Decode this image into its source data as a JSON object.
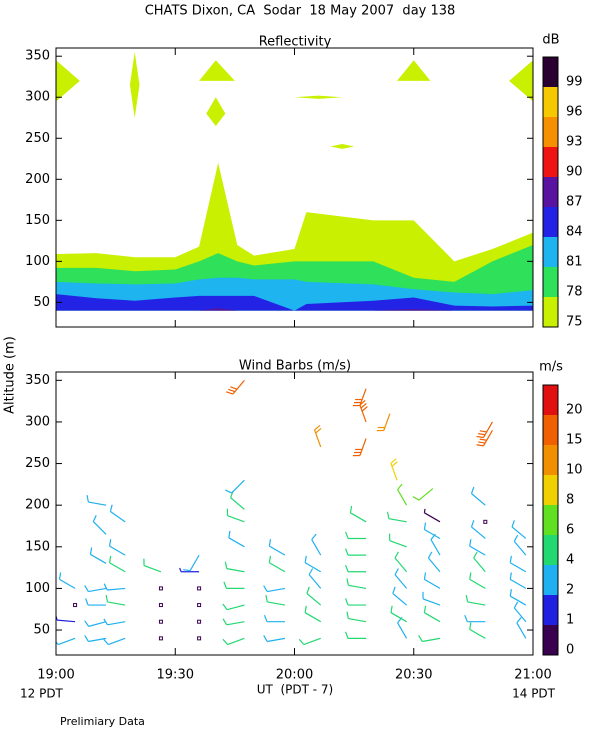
{
  "title": "CHATS Dixon, CA  Sodar  18 May 2007  day 138",
  "ylabel": "Altitude (m)",
  "footer": "Prelimiary Data",
  "chart_data": [
    {
      "type": "contour",
      "title": "Reflectivity",
      "colorbar_label": "dB",
      "levels": [
        75,
        78,
        81,
        84,
        87,
        90,
        93,
        96,
        99
      ],
      "colors": [
        "#c8f000",
        "#2ee05a",
        "#1eb4f0",
        "#2323e6",
        "#5a12a0",
        "#ee1414",
        "#f59000",
        "#f5c800",
        "#2a0030"
      ],
      "x": [
        19,
        19.17,
        19.33,
        19.5,
        19.6,
        19.68,
        19.76,
        19.83,
        20,
        20.05,
        20.33,
        20.5,
        20.67,
        20.83,
        21
      ],
      "tops": [
        [
          109,
          110,
          105,
          105,
          118,
          220,
          120,
          107,
          115,
          160,
          150,
          150,
          100,
          115,
          135
        ],
        [
          92,
          92,
          88,
          90,
          100,
          110,
          100,
          95,
          100,
          100,
          100,
          80,
          75,
          100,
          120
        ],
        [
          75,
          73,
          72,
          73,
          78,
          80,
          80,
          78,
          78,
          75,
          72,
          66,
          62,
          60,
          65
        ],
        [
          60,
          55,
          52,
          56,
          58,
          58,
          58,
          58,
          40,
          48,
          52,
          56,
          46,
          45,
          46
        ],
        [
          40,
          40,
          40,
          40,
          40,
          43,
          40,
          40,
          40,
          40,
          40,
          42,
          40,
          40,
          40
        ]
      ],
      "base": 40,
      "patches": [
        {
          "x": [
            19,
            19.1,
            19
          ],
          "y": [
            295,
            320,
            345
          ]
        },
        {
          "x": [
            21,
            20.9,
            21
          ],
          "y": [
            295,
            320,
            345
          ]
        },
        {
          "x": [
            19.31,
            19.33,
            19.35,
            19.33
          ],
          "y": [
            315,
            355,
            315,
            275
          ]
        },
        {
          "x": [
            19.6,
            19.67,
            19.75
          ],
          "y": [
            320,
            345,
            320
          ]
        },
        {
          "x": [
            19.63,
            19.67,
            19.71,
            19.67
          ],
          "y": [
            280,
            300,
            280,
            265
          ]
        },
        {
          "x": [
            20.43,
            20.5,
            20.57
          ],
          "y": [
            320,
            345,
            320
          ]
        },
        {
          "x": [
            20,
            20.1,
            20.2,
            20.1
          ],
          "y": [
            300,
            302,
            300,
            298
          ]
        },
        {
          "x": [
            20.15,
            20.2,
            20.25,
            20.2
          ],
          "y": [
            240,
            243,
            240,
            237
          ]
        }
      ],
      "xlim": [
        19,
        21
      ],
      "xticks": [
        19,
        19.5,
        20,
        20.5,
        21
      ],
      "ylim": [
        20,
        360
      ],
      "yticks": [
        50,
        100,
        150,
        200,
        250,
        300,
        350
      ]
    },
    {
      "type": "barbs",
      "title": "Wind Barbs (m/s)",
      "colorbar_label": "m/s",
      "levels": [
        0,
        1,
        2,
        4,
        6,
        8,
        10,
        15,
        20
      ],
      "colors": [
        "#3a0050",
        "#2020e0",
        "#1eb0f0",
        "#22d870",
        "#60e020",
        "#f0d000",
        "#f09000",
        "#f06000",
        "#e01010"
      ],
      "x": [
        19.08,
        19.08,
        19.08,
        19.08,
        19.21,
        19.21,
        19.21,
        19.21,
        19.21,
        19.21,
        19.21,
        19.29,
        19.29,
        19.29,
        19.29,
        19.29,
        19.29,
        19.29,
        19.44,
        19.44,
        19.44,
        19.44,
        19.44,
        19.6,
        19.6,
        19.6,
        19.6,
        19.6,
        19.6,
        19.79,
        19.79,
        19.79,
        19.79,
        19.79,
        19.79,
        19.79,
        19.79,
        19.79,
        19.79,
        19.96,
        19.96,
        19.96,
        19.96,
        19.96,
        19.96,
        20.11,
        20.11,
        20.11,
        20.11,
        20.11,
        20.11,
        20.11,
        20.3,
        20.3,
        20.3,
        20.3,
        20.3,
        20.3,
        20.3,
        20.3,
        20.3,
        20.3,
        20.3,
        20.47,
        20.47,
        20.47,
        20.47,
        20.47,
        20.47,
        20.47,
        20.47,
        20.43,
        20.4,
        20.61,
        20.61,
        20.61,
        20.61,
        20.61,
        20.61,
        20.61,
        20.61,
        20.58,
        20.8,
        20.8,
        20.8,
        20.8,
        20.8,
        20.8,
        20.8,
        20.8,
        20.8,
        20.83,
        20.83,
        20.97,
        20.97,
        20.97,
        20.97,
        20.97,
        20.97,
        20.97
      ],
      "y": [
        40,
        60,
        80,
        100,
        40,
        60,
        80,
        100,
        130,
        165,
        200,
        40,
        60,
        80,
        100,
        120,
        140,
        180,
        40,
        60,
        80,
        100,
        120,
        40,
        60,
        80,
        100,
        120,
        140,
        40,
        60,
        80,
        100,
        120,
        150,
        180,
        195,
        230,
        350,
        40,
        60,
        80,
        100,
        120,
        140,
        40,
        60,
        80,
        100,
        120,
        140,
        270,
        40,
        60,
        80,
        100,
        120,
        140,
        160,
        180,
        280,
        300,
        340,
        40,
        60,
        80,
        100,
        120,
        150,
        180,
        200,
        230,
        310,
        40,
        60,
        80,
        100,
        120,
        140,
        160,
        180,
        220,
        40,
        60,
        80,
        100,
        120,
        140,
        160,
        180,
        200,
        290,
        300,
        40,
        60,
        80,
        100,
        120,
        140,
        160
      ],
      "speed": [
        2.5,
        1.2,
        0.3,
        3,
        3,
        3,
        3,
        3,
        3,
        3,
        3,
        3,
        3.5,
        4,
        3,
        4,
        3,
        3,
        0.3,
        0.3,
        0.3,
        0.3,
        4,
        0.3,
        0.3,
        0.3,
        0.3,
        1.5,
        3,
        5,
        5,
        5,
        5,
        4,
        3,
        4,
        5,
        3,
        15,
        3,
        3,
        4,
        3,
        4,
        3,
        5,
        4,
        4,
        3,
        3,
        3,
        10,
        5,
        4,
        4,
        4,
        5,
        5,
        5,
        4,
        16,
        17,
        15,
        3,
        4,
        3,
        3,
        5,
        4,
        4,
        6,
        9,
        12,
        4,
        4,
        3,
        3,
        3,
        3,
        3,
        0.8,
        7,
        4,
        3,
        4,
        4,
        4,
        3,
        3,
        0.3,
        3,
        15,
        15,
        3,
        3,
        3,
        3,
        3,
        3,
        3
      ],
      "direction": [
        250,
        275,
        0,
        300,
        260,
        255,
        270,
        260,
        300,
        315,
        280,
        250,
        260,
        280,
        265,
        300,
        300,
        305,
        0,
        0,
        0,
        0,
        290,
        0,
        0,
        0,
        0,
        270,
        210,
        250,
        260,
        255,
        270,
        280,
        300,
        290,
        310,
        225,
        220,
        260,
        270,
        280,
        260,
        300,
        300,
        250,
        300,
        310,
        320,
        300,
        330,
        340,
        270,
        280,
        270,
        280,
        270,
        270,
        270,
        300,
        200,
        340,
        200,
        330,
        300,
        310,
        320,
        320,
        290,
        280,
        330,
        340,
        200,
        260,
        300,
        290,
        300,
        320,
        330,
        300,
        300,
        230,
        300,
        270,
        280,
        300,
        320,
        300,
        310,
        0,
        310,
        210,
        210,
        330,
        320,
        300,
        300,
        300,
        320,
        310
      ],
      "xlim": [
        19,
        21
      ],
      "xticks": [
        {
          "value": 19,
          "label": "19:00"
        },
        {
          "value": 19.5,
          "label": "19:30"
        },
        {
          "value": 20,
          "label": "20:00"
        },
        {
          "value": 20.5,
          "label": "20:30"
        },
        {
          "value": 21,
          "label": "21:00"
        }
      ],
      "xlabel": "UT  (PDT - 7)",
      "x_start_label": "12 PDT",
      "x_end_label": "14 PDT",
      "ylim": [
        20,
        360
      ],
      "yticks": [
        50,
        100,
        150,
        200,
        250,
        300,
        350
      ]
    }
  ]
}
